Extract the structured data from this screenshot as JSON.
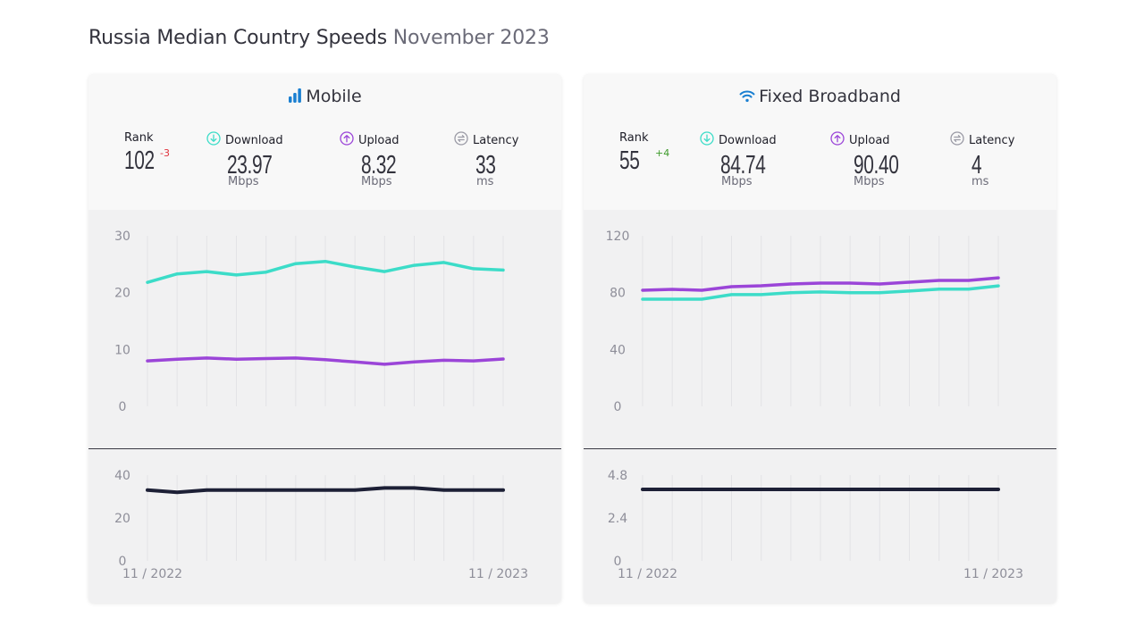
{
  "page": {
    "title_main": "Russia Median Country Speeds",
    "title_period": "November 2023"
  },
  "colors": {
    "download": "#3cdcc8",
    "upload": "#9b45d8",
    "latency": "#1d2036",
    "mobile_icon": "#1a7fd1",
    "wifi_icon": "#1a7fd1",
    "rank_down": "#e0323c",
    "rank_up": "#3d9a2a"
  },
  "cards": [
    {
      "id": "mobile",
      "title": "Mobile",
      "icon": "signal-bars-icon",
      "rank": {
        "label": "Rank",
        "value": "102",
        "delta": "-3",
        "direction": "down"
      },
      "download": {
        "label": "Download",
        "value": "23.97",
        "unit": "Mbps"
      },
      "upload": {
        "label": "Upload",
        "value": "8.32",
        "unit": "Mbps"
      },
      "latency": {
        "label": "Latency",
        "value": "33",
        "unit": "ms"
      }
    },
    {
      "id": "fixed",
      "title": "Fixed Broadband",
      "icon": "wifi-icon",
      "rank": {
        "label": "Rank",
        "value": "55",
        "delta": "+4",
        "direction": "up"
      },
      "download": {
        "label": "Download",
        "value": "84.74",
        "unit": "Mbps"
      },
      "upload": {
        "label": "Upload",
        "value": "90.40",
        "unit": "Mbps"
      },
      "latency": {
        "label": "Latency",
        "value": "4",
        "unit": "ms"
      }
    }
  ],
  "chart_data": [
    {
      "type": "line",
      "title": "Mobile speeds",
      "x": [
        "11/2022",
        "12/2022",
        "01/2023",
        "02/2023",
        "03/2023",
        "04/2023",
        "05/2023",
        "06/2023",
        "07/2023",
        "08/2023",
        "09/2023",
        "10/2023",
        "11/2023"
      ],
      "x_tick_labels": [
        "11 / 2022",
        "11 / 2023"
      ],
      "ylim": [
        0,
        30
      ],
      "yticks": [
        "0",
        "10",
        "20",
        "30"
      ],
      "grid": "vertical",
      "series": [
        {
          "name": "Download",
          "values": [
            21.8,
            23.3,
            23.7,
            23.1,
            23.6,
            25.1,
            25.5,
            24.5,
            23.7,
            24.8,
            25.3,
            24.2,
            23.97
          ]
        },
        {
          "name": "Upload",
          "values": [
            8.0,
            8.3,
            8.5,
            8.3,
            8.4,
            8.5,
            8.2,
            7.8,
            7.4,
            7.8,
            8.1,
            8.0,
            8.32
          ]
        }
      ]
    },
    {
      "type": "line",
      "title": "Mobile latency",
      "x": [
        "11/2022",
        "12/2022",
        "01/2023",
        "02/2023",
        "03/2023",
        "04/2023",
        "05/2023",
        "06/2023",
        "07/2023",
        "08/2023",
        "09/2023",
        "10/2023",
        "11/2023"
      ],
      "x_tick_labels": [
        "11 / 2022",
        "11 / 2023"
      ],
      "ylim": [
        0,
        40
      ],
      "yticks": [
        "0",
        "20",
        "40"
      ],
      "grid": "vertical",
      "series": [
        {
          "name": "Latency",
          "values": [
            33,
            32,
            33,
            33,
            33,
            33,
            33,
            33,
            34,
            34,
            33,
            33,
            33
          ]
        }
      ]
    },
    {
      "type": "line",
      "title": "Fixed Broadband speeds",
      "x": [
        "11/2022",
        "12/2022",
        "01/2023",
        "02/2023",
        "03/2023",
        "04/2023",
        "05/2023",
        "06/2023",
        "07/2023",
        "08/2023",
        "09/2023",
        "10/2023",
        "11/2023"
      ],
      "x_tick_labels": [
        "11 / 2022",
        "11 / 2023"
      ],
      "ylim": [
        0,
        120
      ],
      "yticks": [
        "0",
        "40",
        "80",
        "120"
      ],
      "grid": "vertical",
      "series": [
        {
          "name": "Download",
          "values": [
            75.4,
            75.4,
            75.4,
            78.6,
            78.6,
            79.9,
            80.5,
            79.9,
            79.9,
            81.1,
            82.4,
            82.4,
            84.74
          ]
        },
        {
          "name": "Upload",
          "values": [
            81.7,
            82.3,
            81.7,
            84.2,
            84.8,
            86.1,
            86.7,
            86.7,
            86.1,
            87.3,
            88.6,
            88.6,
            90.4
          ]
        }
      ]
    },
    {
      "type": "line",
      "title": "Fixed Broadband latency",
      "x": [
        "11/2022",
        "12/2022",
        "01/2023",
        "02/2023",
        "03/2023",
        "04/2023",
        "05/2023",
        "06/2023",
        "07/2023",
        "08/2023",
        "09/2023",
        "10/2023",
        "11/2023"
      ],
      "x_tick_labels": [
        "11 / 2022",
        "11 / 2023"
      ],
      "ylim": [
        0,
        4.8
      ],
      "yticks": [
        "0",
        "2.4",
        "4.8"
      ],
      "grid": "vertical",
      "series": [
        {
          "name": "Latency",
          "values": [
            4,
            4,
            4,
            4,
            4,
            4,
            4,
            4,
            4,
            4,
            4,
            4,
            4
          ]
        }
      ]
    }
  ]
}
